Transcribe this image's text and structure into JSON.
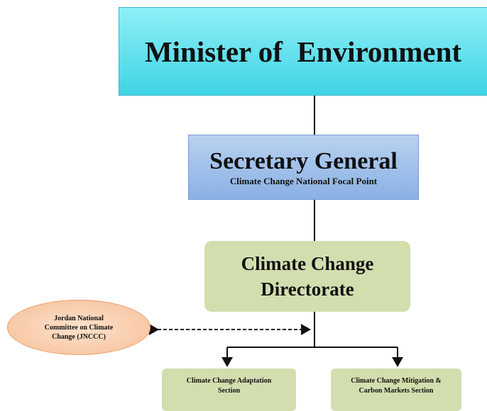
{
  "nodes": [
    {
      "label": "Minister of  Environment"
    },
    {
      "label": "Secretary General",
      "sublabel": "Climate Change National Focal Point"
    },
    {
      "label": "Climate Change Directorate"
    },
    {
      "label": "Jordan National Committee on Climate Change (JNCCC)"
    },
    {
      "label": "Climate Change Adaptation Section"
    },
    {
      "label": "Climate Change Mitigation & Carbon Markets Section"
    }
  ]
}
